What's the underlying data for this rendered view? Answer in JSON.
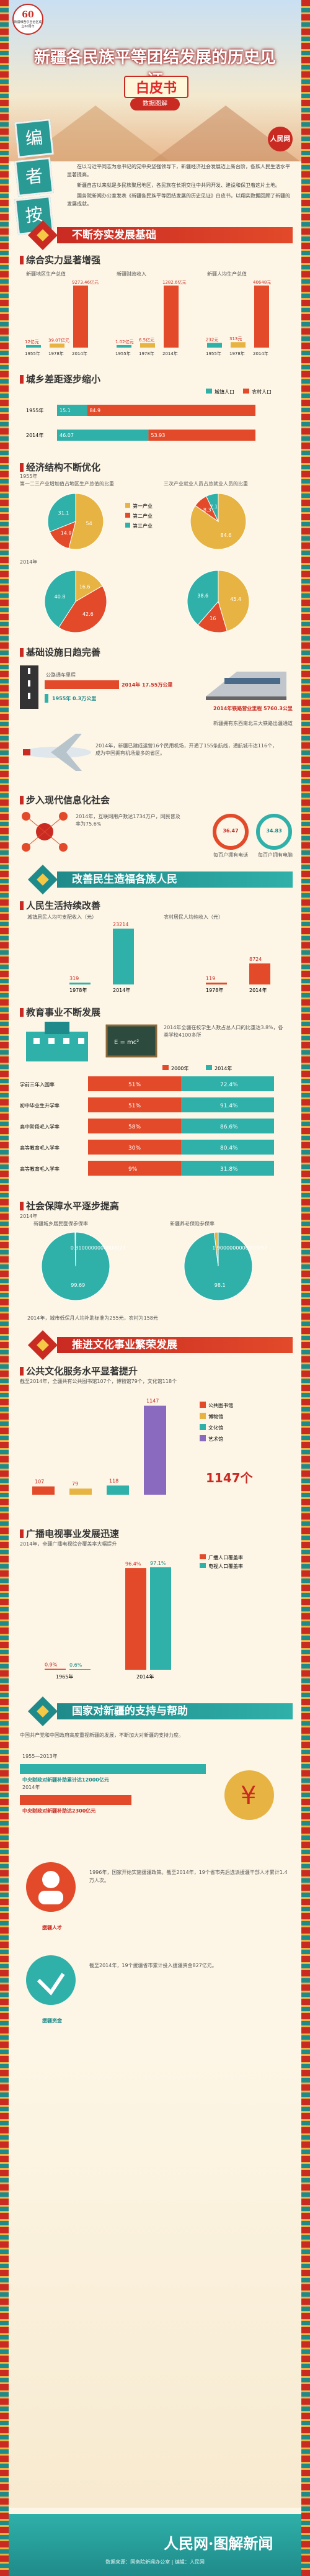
{
  "header": {
    "logo_top": "60",
    "logo_text": "新疆维吾尔自治区成立60周年",
    "title": "新疆各民族平等团结发展的历史见证",
    "subtitle": "白皮书",
    "ribbon": "数据图解",
    "editor": [
      "编",
      "者",
      "按"
    ],
    "corner_logo": "人民网",
    "intro": [
      "在以习近平同志为总书记的党中央坚强领导下，新疆经济社会发展迈上新台阶，各族人民生活水平显著提高。",
      "新疆自古以来就是多民族聚居地区，各民族在长期交往中共同开发、建设和保卫着这片土地。",
      "国务院新闻办公室发表《新疆各民族平等团结发展的历史见证》白皮书，以翔实数据回顾了新疆的发展成就。"
    ]
  },
  "sections": {
    "s1": "不断夯实发展基础",
    "s2": "改善民生造福各族人民",
    "s3": "推进文化事业繁荣发展",
    "s4": "国家对新疆的支持与帮助"
  },
  "subs": {
    "gdp": "综合实力显著增强",
    "urban": "城乡差距逐步缩小",
    "structure": "经济结构不断优化",
    "infra": "基础设施日趋完善",
    "info": "步入现代信息化社会",
    "income": "人民生活持续改善",
    "edu": "教育事业不断发展",
    "social": "社会保障水平逐步提高",
    "culture": "公共文化服务水平显著提升",
    "broadcast": "广播电视事业发展迅速"
  },
  "gdp": {
    "groups": [
      {
        "label": "新疆地区生产总值",
        "years": [
          "1955年",
          "1978年",
          "2014年"
        ],
        "values": [
          "12亿元",
          "39.07亿元",
          "9273.46亿元"
        ]
      },
      {
        "label": "新疆财政收入",
        "years": [
          "1955年",
          "1978年",
          "2014年"
        ],
        "values": [
          "1.02亿元",
          "6.5亿元",
          "1282.6亿元"
        ]
      },
      {
        "label": "新疆人均生产总值",
        "years": [
          "1955年",
          "1978年",
          "2014年"
        ],
        "values": [
          "232元",
          "313元",
          "40648元"
        ]
      }
    ]
  },
  "urban": {
    "legend": [
      "城镇人口",
      "农村人口"
    ],
    "rows": [
      {
        "year": "1955年",
        "a": "15.1",
        "b": "84.9"
      },
      {
        "year": "2014年",
        "a": "46.07",
        "b": "53.93"
      }
    ]
  },
  "structure": {
    "y1": "1955年",
    "y2": "2014年",
    "cap1": "第一二三产业增加值占地区生产总值的比重",
    "cap2": "三次产业就业人员占总就业人员的比重",
    "pie1": {
      "values": [
        "54.0",
        "14.9",
        "31.1"
      ],
      "labels": [
        "第一产业",
        "第二产业",
        "第三产业"
      ]
    },
    "pie2": {
      "values": [
        "84.6",
        "8.3",
        "7.1"
      ]
    },
    "pie3": {
      "values": [
        "16.6",
        "42.6",
        "40.8"
      ]
    },
    "pie4": {
      "values": [
        "45.4",
        "16.0",
        "38.6"
      ]
    }
  },
  "infra": {
    "road_cap": "公路通车里程",
    "road": [
      "2014年 17.55万公里",
      "1955年 0.3万公里"
    ],
    "rail": "2014年铁路营业里程 5760.3公里",
    "rail_note": "新疆拥有东西南北三大铁路出疆通道",
    "air": "2014年，新疆已建成运营16个民用机场，开通了155条航线，通航城市达116个，成为中国拥有机场最多的省区。"
  },
  "info": {
    "phone": "2014年，互联网用户数达1734万户，网民普及率为75.6%",
    "circles": [
      {
        "label": "每百户拥有电话",
        "value": "36.47"
      },
      {
        "label": "每百户拥有电脑",
        "value": "34.83"
      }
    ]
  },
  "income": {
    "urban_cap": "城镇居民人均可支配收入（元）",
    "rural_cap": "农村居民人均纯收入（元）",
    "urban": [
      {
        "y": "1978年",
        "v": "319"
      },
      {
        "y": "2014年",
        "v": "23214"
      }
    ],
    "rural": [
      {
        "y": "1978年",
        "v": "119"
      },
      {
        "y": "2014年",
        "v": "8724"
      }
    ]
  },
  "edu": {
    "note": "2014年全疆在校学生人数占总人口的比重达3.8%，各类学校4100多所",
    "legend": [
      "2000年",
      "2014年"
    ],
    "rows": [
      {
        "label": "学前三年入园率",
        "a": "51%",
        "b": "72.4%"
      },
      {
        "label": "初中毕业生升学率",
        "a": "51%",
        "b": "91.4%"
      },
      {
        "label": "高中阶段毛入学率",
        "a": "58%",
        "b": "86.6%"
      },
      {
        "label": "高等教育毛入学率",
        "a": "30%",
        "b": "80.4%"
      },
      {
        "label": "高等教育毛入学率",
        "a": "9%",
        "b": "31.8%"
      }
    ]
  },
  "social": {
    "year": "2014年",
    "cap1": "新疆城乡居民医保参保率",
    "cap2": "新疆养老保险参保率",
    "p1": "99.69%",
    "p2": "98.1%",
    "note": "2014年，城市低保月人均补助标准为255元，农村为158元"
  },
  "culture": {
    "note": "截至2014年，全疆共有公共图书馆107个，博物馆79个，文化馆118个",
    "legend": [
      "公共图书馆",
      "博物馆",
      "文化馆",
      "艺术馆"
    ],
    "values": [
      "107",
      "79",
      "118",
      "1147"
    ],
    "big": "1147个"
  },
  "broadcast": {
    "note": "2014年，全疆广播电视综合覆盖率大幅提升",
    "groups": [
      {
        "year": "1965年",
        "a": "0.9%",
        "b": "0.6%"
      },
      {
        "year": "2014年",
        "a": "96.4%",
        "b": "97.1%"
      }
    ],
    "legend": [
      "广播人口覆盖率",
      "电视人口覆盖率"
    ]
  },
  "support": {
    "intro": "中国共产党和中国政府高度重视新疆的发展，不断加大对新疆的支持力度。",
    "rows": [
      {
        "label": "1955—2013年",
        "value": "中央财政对新疆补助累计达12000亿元"
      },
      {
        "label": "2014年",
        "value": "中央财政对新疆补助达2300亿元"
      }
    ],
    "talent_cap": "援疆人才",
    "talent": "1996年，国家开始实施援疆政策。截至2014年，19个省市先后选派援疆干部人才累计1.4万人次。",
    "money_cap": "援疆资金",
    "money": "截至2014年，19个援疆省市累计投入援疆资金827亿元。"
  },
  "footer": {
    "brand": "人民网·图解新闻",
    "credit": "数据来源：国务院新闻办公室 | 编辑：人民网"
  },
  "chart_data": [
    {
      "type": "bar",
      "title": "综合实力显著增强",
      "categories": [
        "1955年",
        "1978年",
        "2014年"
      ],
      "series": [
        {
          "name": "新疆地区生产总值",
          "values": [
            12,
            39.07,
            9273.46
          ]
        },
        {
          "name": "新疆财政收入",
          "values": [
            1.02,
            6.5,
            1282.6
          ]
        },
        {
          "name": "新疆人均生产总值",
          "values": [
            232,
            313,
            40648
          ]
        }
      ]
    },
    {
      "type": "bar",
      "title": "城乡差距逐步缩小",
      "categories": [
        "1955年",
        "2014年"
      ],
      "series": [
        {
          "name": "城镇人口",
          "values": [
            15.1,
            46.07
          ]
        },
        {
          "name": "农村人口",
          "values": [
            84.9,
            53.93
          ]
        }
      ]
    },
    {
      "type": "bar",
      "title": "人民生活持续改善",
      "categories": [
        "1978年",
        "2014年"
      ],
      "series": [
        {
          "name": "城镇居民人均可支配收入",
          "values": [
            319,
            23214
          ]
        },
        {
          "name": "农村居民人均纯收入",
          "values": [
            119,
            8724
          ]
        }
      ]
    },
    {
      "type": "bar",
      "title": "教育事业不断发展",
      "categories": [
        "学前三年入园率",
        "初中毕业生升学率",
        "高中阶段毛入学率",
        "高等教育毛入学率",
        "高等教育毛入学率"
      ],
      "series": [
        {
          "name": "2000年",
          "values": [
            51,
            51,
            58,
            30,
            9
          ]
        },
        {
          "name": "2014年",
          "values": [
            72.4,
            91.4,
            86.6,
            80.4,
            31.8
          ]
        }
      ]
    }
  ]
}
